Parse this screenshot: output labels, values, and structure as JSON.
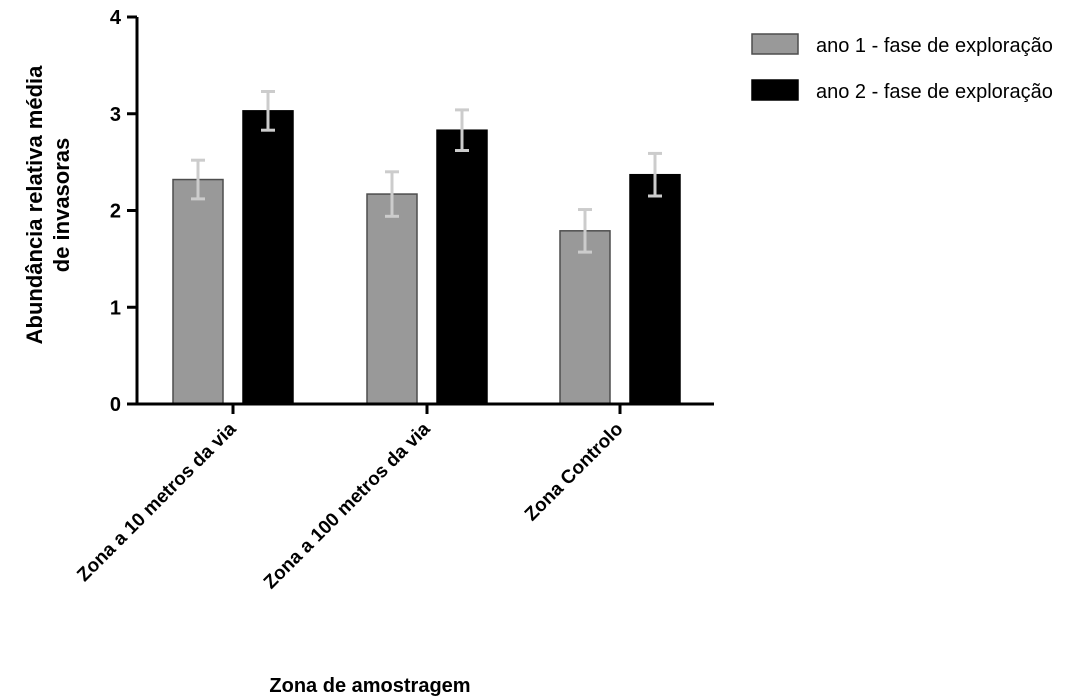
{
  "chart_data": {
    "type": "bar",
    "title": "",
    "xlabel": "Zona de amostragem",
    "ylabel": [
      "Abundância relativa média",
      "de invasoras"
    ],
    "categories": [
      "Zona a 10 metros da via",
      "Zona a 100 metros da via",
      "Zona Controlo"
    ],
    "ylim": [
      0,
      4
    ],
    "yticks": [
      "0",
      "1",
      "2",
      "3",
      "4"
    ],
    "grid": false,
    "legend_position": "top-right",
    "series": [
      {
        "name": "ano 1 - fase de exploração",
        "values": [
          2.32,
          2.17,
          1.79
        ],
        "error": [
          0.2,
          0.23,
          0.22
        ],
        "color": "#999999"
      },
      {
        "name": "ano 2 - fase de exploração",
        "values": [
          3.03,
          2.83,
          2.37
        ],
        "error": [
          0.2,
          0.21,
          0.22
        ],
        "color": "#000000"
      }
    ],
    "error_bar_color": "#cccccc"
  }
}
